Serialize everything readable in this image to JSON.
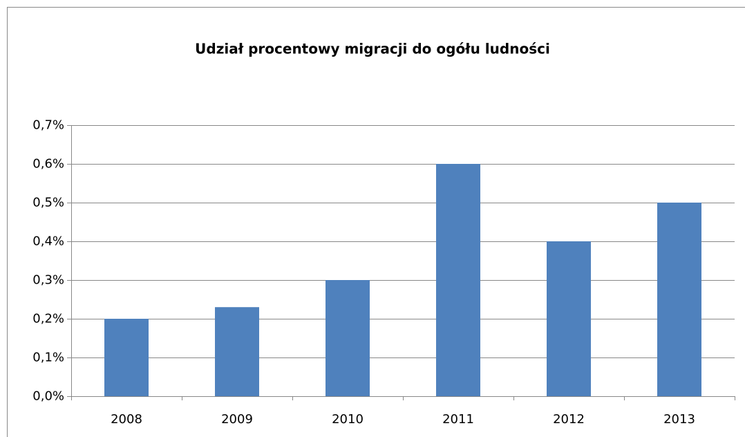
{
  "chart_data": {
    "type": "bar",
    "title": "Udział procentowy migracji do ogółu ludności",
    "categories": [
      "2008",
      "2009",
      "2010",
      "2011",
      "2012",
      "2013"
    ],
    "values": [
      0.2,
      0.23,
      0.3,
      0.6,
      0.4,
      0.5
    ],
    "color": "#4f81bd",
    "ylim": [
      0,
      0.7
    ],
    "yticks": [
      {
        "value": 0,
        "label": "0,0%"
      },
      {
        "value": 0.1,
        "label": "0,1%"
      },
      {
        "value": 0.2,
        "label": "0,2%"
      },
      {
        "value": 0.3,
        "label": "0,3%"
      },
      {
        "value": 0.4,
        "label": "0,4%"
      },
      {
        "value": 0.5,
        "label": "0,5%"
      },
      {
        "value": 0.6,
        "label": "0,6%"
      },
      {
        "value": 0.7,
        "label": "0,7%"
      }
    ],
    "grid": true
  }
}
